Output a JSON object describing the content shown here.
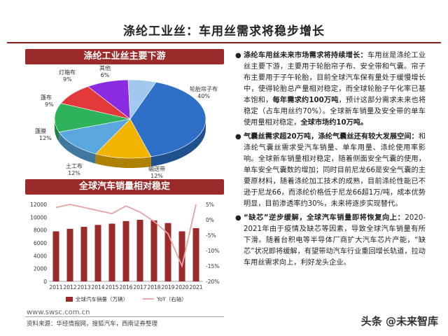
{
  "page": {
    "title": "涤纶工业丝：车用丝需求将稳步增长",
    "website": "www.swsc.com.cn",
    "source_note": "资料来源：华经情报网，搜狐汽车，西南证券整理",
    "watermark": "头条 @未来智库"
  },
  "chart_data": [
    {
      "type": "pie",
      "title": "涤纶工业丝主要下游",
      "slices": [
        {
          "name": "轮胎帘子布",
          "label": "轮胎帘子布",
          "percent_label": "40%",
          "value": 40
        },
        {
          "name": "输送带",
          "label": "输送带",
          "percent_label": "12%",
          "value": 12
        },
        {
          "name": "土工布",
          "label": "土工布",
          "percent_label": "12%",
          "value": 12
        },
        {
          "name": "篷膜",
          "label": "篷膜",
          "percent_label": "12%",
          "value": 12
        },
        {
          "name": "篷布",
          "label": "篷布",
          "percent_label": "9%",
          "value": 9
        },
        {
          "name": "灯箱布",
          "label": "灯箱布",
          "percent_label": "9%",
          "value": 9
        },
        {
          "name": "其他",
          "label": "其他",
          "percent_label": "6%",
          "value": 6
        }
      ],
      "colors": [
        "#2e6fc7",
        "#f2b400",
        "#5aa7dd",
        "#2fb35a",
        "#e23a3a",
        "#8a2be2",
        "#a2c8f0"
      ]
    },
    {
      "type": "bar",
      "title": "全球汽车销量相对稳定",
      "categories": [
        "2011",
        "2012",
        "2013",
        "2014",
        "2015",
        "2016",
        "2017",
        "2018",
        "2019",
        "2020",
        "2021"
      ],
      "series": [
        {
          "name": "全球汽车销量（万辆）",
          "axis": "left",
          "values": [
            7800,
            8200,
            8500,
            8800,
            9000,
            9400,
            9600,
            9500,
            9100,
            7800,
            8300
          ]
        },
        {
          "name": "YoY（右轴）",
          "axis": "right",
          "values": [
            4.0,
            5.0,
            4.0,
            3.0,
            2.0,
            4.5,
            2.5,
            -0.5,
            -4.5,
            -15.0,
            5.0
          ]
        }
      ],
      "left_axis": {
        "ylim": [
          0,
          12000
        ],
        "ticks": [
          "0",
          "2000",
          "4000",
          "6000",
          "8000",
          "10000",
          "12000"
        ]
      },
      "right_axis": {
        "ylim": [
          -20,
          5
        ],
        "ticks": [
          "-20%",
          "-15%",
          "-10%",
          "-5%",
          "0%",
          "5%"
        ]
      },
      "colors": {
        "bar": "#9b2a2a",
        "line": "#e6a3a3"
      }
    }
  ],
  "right_text": {
    "p1": {
      "lead": "涤纶车用丝未来市场需求将持续增长：",
      "body1": "车用丝是涤纶工业丝主要下游，主要用于轮胎帘子布、安全带和气囊。帘子布主要用于子午轮胎，目前全球汽车保有量处于缓慢增长中，使得轮胎总产量相对稳定，而全球轮胎子午化率已基本饱和，",
      "bold1": "每年需求约100万吨",
      "body2": "，预计这部分需求未来也将稳定（占车用丝约70%）。全球新车销量及安全带的单车使用量相对稳定，",
      "bold2": "全球市场约10万吨。"
    },
    "p2": {
      "lead": "气囊丝需求超20万吨，涤纶气囊丝还有较大发展空间：",
      "body": "和涤纶气囊丝需求受汽车销量、单车用量、涤纶使用率影响。全球新车销量相对稳定，随着侧面安全气囊的使用，单车安全气囊数的增加；同时目前尼龙66是安全气囊的主要原材料，随着涤纶加工技术的成熟，目前涤纶性能已不逊于尼龙66，而涤纶价格低于尼龙66超1万/吨，成本优势明显，目前渗透率约30%，未来将逐步实现替代。"
    },
    "p3": {
      "lead": "“缺芯”逆步缓解，全球汽车销量即将恢复向上：",
      "body": "2020-2021年由于疫情及缺芯等因素，导致全球汽车销量有所下滑。随着台积电等半导体厂商扩大汽车芯片产能，“缺芯”状况即将缓解，有望带动汽车行业重回增长轨道，拉动车用丝需求向上，利好龙头企业。"
    }
  }
}
